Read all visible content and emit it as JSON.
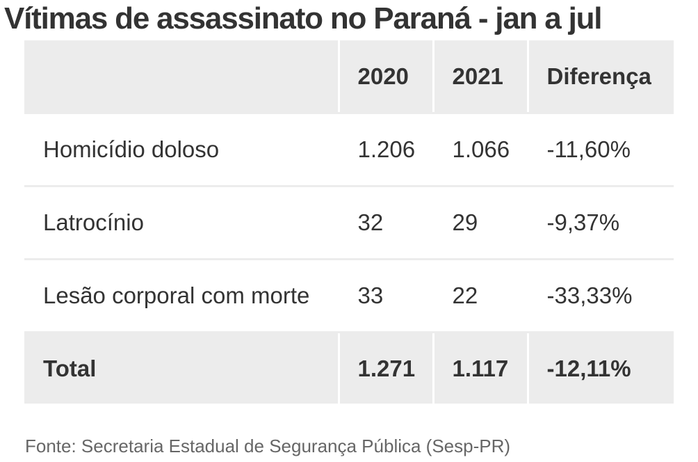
{
  "title": "Vítimas de assassinato no Paraná - jan a jul",
  "table": {
    "headers": [
      "",
      "2020",
      "2021",
      "Diferença"
    ],
    "rows": [
      {
        "label": "Homicídio doloso",
        "y2020": "1.206",
        "y2021": "1.066",
        "diff": "-11,60%"
      },
      {
        "label": "Latrocínio",
        "y2020": "32",
        "y2021": "29",
        "diff": "-9,37%"
      },
      {
        "label": "Lesão corporal com morte",
        "y2020": "33",
        "y2021": "22",
        "diff": "-33,33%"
      }
    ],
    "total": {
      "label": "Total",
      "y2020": "1.271",
      "y2021": "1.117",
      "diff": "-12,11%"
    }
  },
  "source": "Fonte: Secretaria Estadual de Segurança Pública (Sesp-PR)",
  "colors": {
    "text": "#333333",
    "header_bg": "#ececec",
    "source_text": "#666666"
  }
}
